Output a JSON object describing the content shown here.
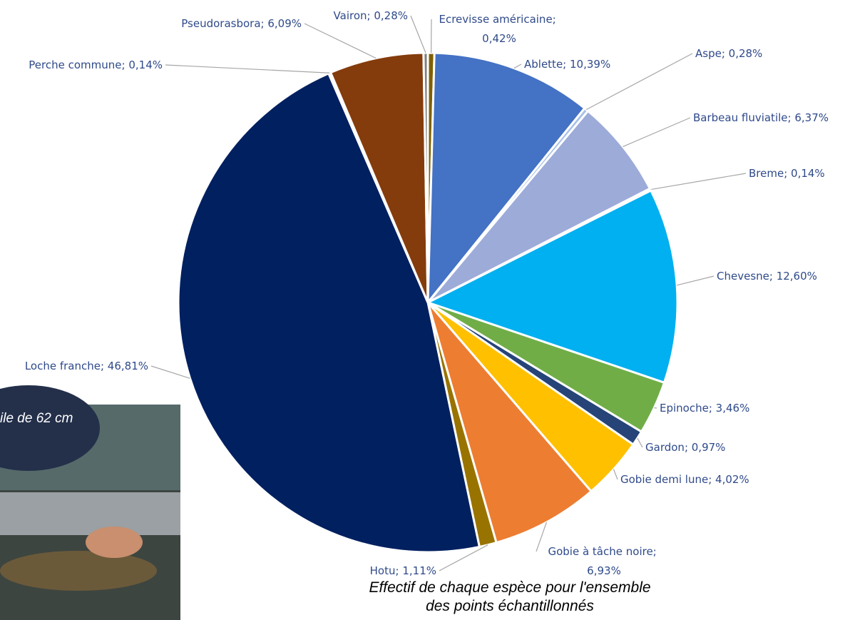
{
  "chart_data": {
    "type": "pie",
    "title": "Effectif de chaque espèce pour l'ensemble des points échantillonnés",
    "categories": [
      "Ecrevisse américaine",
      "Ablette",
      "Aspe",
      "Barbeau fluviatile",
      "Breme",
      "Chevesne",
      "Epinoche",
      "Gardon",
      "Gobie demi lune",
      "Gobie à tâche noire",
      "Hotu",
      "Loche franche",
      "Perche commune",
      "Pseudorasbora",
      "Vairon"
    ],
    "values": [
      0.42,
      10.39,
      0.28,
      6.37,
      0.14,
      12.6,
      3.46,
      0.97,
      4.02,
      6.93,
      1.11,
      46.81,
      0.14,
      6.09,
      0.28
    ],
    "value_labels": [
      "0,42%",
      "10,39%",
      "0,28%",
      "6,37%",
      "0,14%",
      "12,60%",
      "3,46%",
      "0,97%",
      "4,02%",
      "6,93%",
      "1,11%",
      "46,81%",
      "0,14%",
      "6,09%",
      "0,28%"
    ],
    "label_separator": "; ",
    "colors": [
      "#7f6000",
      "#4472c4",
      "#a9c1e8",
      "#9dabd9",
      "#5b9bd5",
      "#00b0f0",
      "#70ad47",
      "#264478",
      "#ffc000",
      "#ed7d31",
      "#997300",
      "#002060",
      "#a5a5a5",
      "#843c0c",
      "#7f7f7f"
    ]
  },
  "photo_caption": "ile de 62 cm"
}
